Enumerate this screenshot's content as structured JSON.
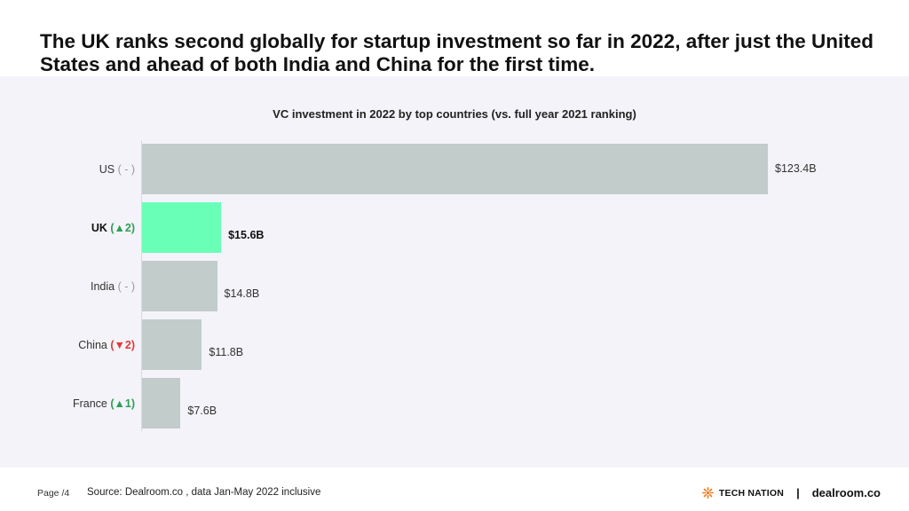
{
  "headline": "The UK ranks second globally for startup investment so far in 2022, after just the United States and ahead of both India and China for the first time.",
  "chart_data": {
    "type": "bar",
    "orientation": "horizontal",
    "title": "VC investment in 2022 by top countries (vs. full year 2021 ranking)",
    "xlim": [
      0,
      123.4
    ],
    "categories": [
      {
        "name": "US",
        "rank_change": "( - )",
        "direction": "none",
        "value": 123.4,
        "value_label": "$123.4B",
        "highlight": false
      },
      {
        "name": "UK",
        "rank_change": "(▲2)",
        "direction": "up",
        "value": 15.6,
        "value_label": "$15.6B",
        "highlight": true
      },
      {
        "name": "India",
        "rank_change": "( - )",
        "direction": "none",
        "value": 14.8,
        "value_label": "$14.8B",
        "highlight": false
      },
      {
        "name": "China",
        "rank_change": "(▼2)",
        "direction": "down",
        "value": 11.8,
        "value_label": "$11.8B",
        "highlight": false
      },
      {
        "name": "France",
        "rank_change": "(▲1)",
        "direction": "up",
        "value": 7.6,
        "value_label": "$7.6B",
        "highlight": false
      }
    ],
    "colors": {
      "bar": "#c2ccca",
      "highlight": "#69ffb7",
      "up": "#2e9e55",
      "down": "#e03a3a",
      "neutral": "#9a9a9a"
    }
  },
  "footer": {
    "page": "Page /4",
    "source": "Source: Dealroom.co , data Jan-May 2022 inclusive",
    "brand_left": "TECH NATION",
    "separator": "|",
    "brand_right": "dealroom.co",
    "brand_left_icon": "sunburst-icon"
  }
}
